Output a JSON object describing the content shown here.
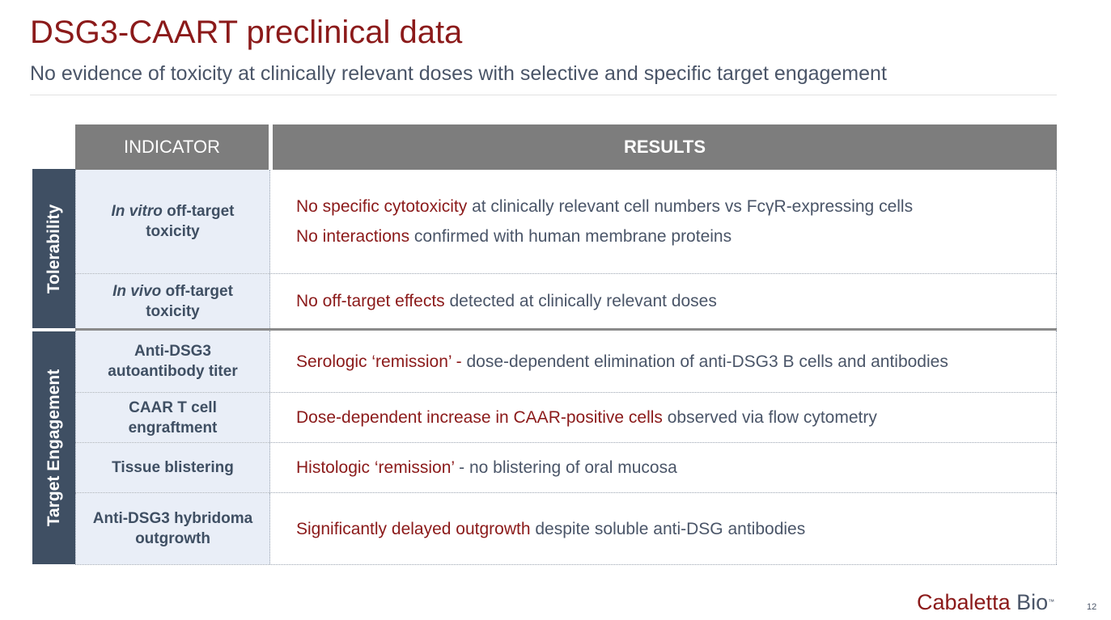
{
  "title": "DSG3-CAART preclinical data",
  "subtitle": "No evidence of toxicity at clinically relevant doses with selective and specific target engagement",
  "table": {
    "header_indicator": "INDICATOR",
    "header_results": "RESULTS",
    "group_tolerability": "Tolerability",
    "group_target": "Target Engagement",
    "rows": [
      {
        "ind_italic": "In vitro",
        "ind_rest": " off-target",
        "ind_line2": "toxicity",
        "r1_red": "No specific cytotoxicity",
        "r1_text": " at clinically relevant cell numbers vs FcγR-expressing cells",
        "r2_red": "No interactions",
        "r2_text": " confirmed with human membrane proteins"
      },
      {
        "ind_italic": "In vivo",
        "ind_rest": " off-target",
        "ind_line2": "toxicity",
        "r_red": "No off-target effects",
        "r_text": " detected at clinically relevant doses"
      },
      {
        "ind_line1": "Anti-DSG3",
        "ind_line2": "autoantibody titer",
        "r_red": "Serologic ‘remission’ -",
        "r_text": " dose-dependent elimination of anti-DSG3 B cells and antibodies"
      },
      {
        "ind_line1": "CAAR T cell",
        "ind_line2": "engraftment",
        "r_red": "Dose-dependent increase in CAAR-positive cells",
        "r_text": " observed via flow cytometry"
      },
      {
        "ind_line1": "Tissue blistering",
        "r_red": "Histologic ‘remission’",
        "r_text": " - no blistering of oral mucosa"
      },
      {
        "ind_line1": "Anti-DSG3 hybridoma",
        "ind_line2": "outgrowth",
        "r_red": "Significantly delayed outgrowth",
        "r_text": " despite soluble anti-DSG antibodies"
      }
    ]
  },
  "logo": {
    "part1": "Cabaletta",
    "part2": " Bio",
    "tm": "™"
  },
  "page_number": "12"
}
